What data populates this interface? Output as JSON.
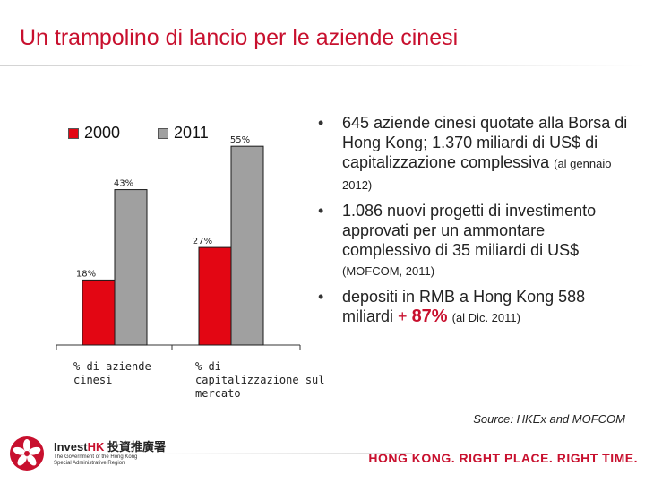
{
  "title": "Un trampolino di lancio per le aziende cinesi",
  "colors": {
    "accent": "#c8102e",
    "bar_2000": "#e30613",
    "bar_2011": "#a0a0a0"
  },
  "chart_data": {
    "type": "bar",
    "categories": [
      "% di aziende cinesi",
      "% di capitalizzazione sul mercato"
    ],
    "series": [
      {
        "name": "2000",
        "values": [
          18,
          27
        ],
        "labels": [
          "18%",
          "27%"
        ],
        "color": "#e30613"
      },
      {
        "name": "2011",
        "values": [
          43,
          55
        ],
        "labels": [
          "43%",
          "55%"
        ],
        "color": "#a0a0a0"
      }
    ],
    "ylim": [
      0,
      60
    ],
    "grid": false,
    "legend": [
      "2000",
      "2011"
    ],
    "category_lines": [
      [
        "% di aziende",
        "cinesi"
      ],
      [
        "% di",
        "capitalizzazione sul",
        "mercato"
      ]
    ]
  },
  "bullets": {
    "b1": {
      "main": "645 aziende cinesi quotate alla Borsa di Hong Kong; 1.370 miliardi di US$ di capitalizzazione complessiva",
      "note": "(al gennaio 2012)"
    },
    "b2": {
      "main": "1.086 nuovi progetti di investimento approvati per un ammontare complessivo di 35 miliardi di US$",
      "note": "(MOFCOM, 2011)"
    },
    "b3": {
      "main": "depositi in RMB a Hong Kong 588 miliardi",
      "growth_sign": "+",
      "growth": "87%",
      "note": "(al Dic. 2011)"
    }
  },
  "source": "Source: HKEx and MOFCOM",
  "footer": {
    "brand_prefix": "Invest",
    "brand_hk": "HK",
    "brand_cn": "投資推廣署",
    "sub_lines": [
      "The Government of the Hong Kong",
      "Special Administrative Region"
    ],
    "tagline": "HONG KONG. RIGHT PLACE. RIGHT TIME.",
    "emblem_icon": "bauhinia-emblem-icon"
  }
}
